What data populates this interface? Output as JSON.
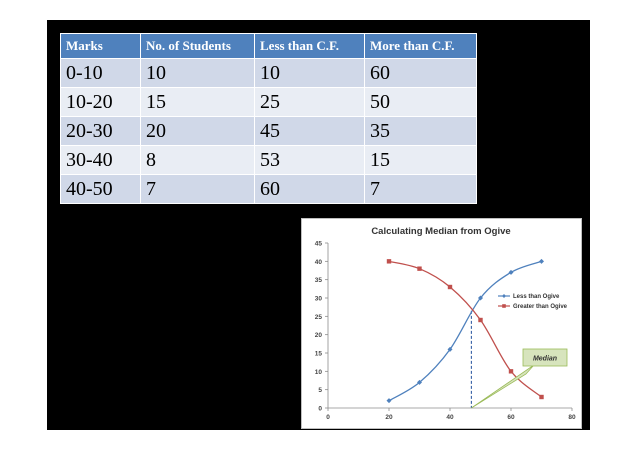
{
  "table": {
    "headers": [
      "Marks",
      "No. of Students",
      "Less than C.F.",
      "More than C.F."
    ],
    "rows": [
      [
        "0-10",
        "10",
        "10",
        "60"
      ],
      [
        "10-20",
        "15",
        "25",
        "50"
      ],
      [
        "20-30",
        "20",
        "45",
        "35"
      ],
      [
        "30-40",
        "8",
        "53",
        "15"
      ],
      [
        "40-50",
        "7",
        "60",
        "7"
      ]
    ]
  },
  "chart_data": {
    "type": "line",
    "title": "Calculating Median from Ogive",
    "xlabel": "",
    "ylabel": "",
    "xlim": [
      0,
      80
    ],
    "ylim": [
      0,
      45
    ],
    "xticks": [
      0,
      20,
      40,
      60,
      80
    ],
    "yticks": [
      0,
      5,
      10,
      15,
      20,
      25,
      30,
      35,
      40,
      45
    ],
    "grid": false,
    "legend_position": "right",
    "series": [
      {
        "name": "Less than Ogive",
        "color": "#4f81bd",
        "marker": "diamond",
        "x": [
          20,
          30,
          40,
          50,
          60,
          70
        ],
        "y": [
          2,
          7,
          16,
          30,
          37,
          40
        ]
      },
      {
        "name": "Greater than Ogive",
        "color": "#c0504d",
        "marker": "square",
        "x": [
          20,
          30,
          40,
          50,
          60,
          70
        ],
        "y": [
          40,
          38,
          33,
          24,
          10,
          3
        ]
      }
    ],
    "median_line_x": 47,
    "annotation": "Median"
  }
}
